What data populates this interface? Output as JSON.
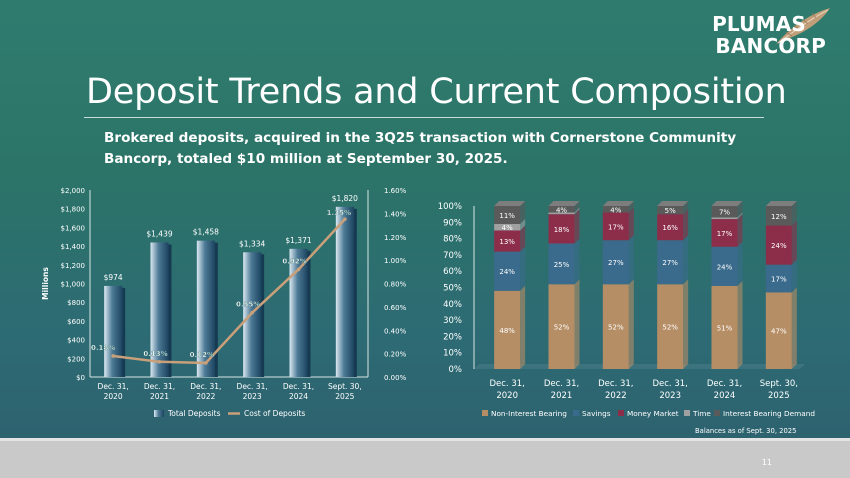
{
  "logo": {
    "line1": "PLUMAS",
    "line2": "BANCORP"
  },
  "title": "Deposit Trends and Current Composition",
  "subtitle": "Brokered deposits, acquired in the 3Q25 transaction with Cornerstone Community Bancorp, totaled $10 million at September 30, 2025.",
  "page_number": "11",
  "colors": {
    "bar": "#4d7a96",
    "line": "#c9a07a",
    "non_interest": "#b68e66",
    "savings": "#3a6b8c",
    "money_market": "#8c2e4a",
    "time": "#a0a0a0",
    "interest_demand": "#5a5a5a"
  },
  "chart_data": [
    {
      "type": "bar",
      "categories": [
        [
          "Dec. 31,",
          "2020"
        ],
        [
          "Dec. 31,",
          "2021"
        ],
        [
          "Dec. 31,",
          "2022"
        ],
        [
          "Dec. 31,",
          "2023"
        ],
        [
          "Dec. 31,",
          "2024"
        ],
        [
          "Sept. 30,",
          "2025"
        ]
      ],
      "ylabel": "Millions",
      "ylim": [
        0,
        2000
      ],
      "yticks": [
        "$0",
        "$200",
        "$400",
        "$600",
        "$800",
        "$1,000",
        "$1,200",
        "$1,400",
        "$1,600",
        "$1,800",
        "$2,000"
      ],
      "y2lim": [
        0,
        1.6
      ],
      "y2ticks": [
        "0.00%",
        "0.20%",
        "0.40%",
        "0.60%",
        "0.80%",
        "1.00%",
        "1.20%",
        "1.40%",
        "1.60%"
      ],
      "series": [
        {
          "name": "Total Deposits",
          "kind": "bar",
          "axis": "left",
          "values": [
            974,
            1439,
            1458,
            1334,
            1371,
            1820
          ],
          "labels": [
            "$974",
            "$1,439",
            "$1,458",
            "$1,334",
            "$1,371",
            "$1,820"
          ]
        },
        {
          "name": "Cost of Deposits",
          "kind": "line",
          "axis": "right",
          "values": [
            0.18,
            0.13,
            0.12,
            0.55,
            0.92,
            1.35
          ],
          "labels": [
            "0.18%",
            "0.13%",
            "0.12%",
            "0.55%",
            "0.92%",
            "1.35%"
          ]
        }
      ],
      "legend": [
        "Total Deposits",
        "Cost of Deposits"
      ],
      "legend_position": "bottom"
    },
    {
      "type": "bar",
      "stacked": true,
      "categories": [
        [
          "Dec. 31,",
          "2020"
        ],
        [
          "Dec. 31,",
          "2021"
        ],
        [
          "Dec. 31,",
          "2022"
        ],
        [
          "Dec. 31,",
          "2023"
        ],
        [
          "Dec. 31,",
          "2024"
        ],
        [
          "Sept. 30,",
          "2025"
        ]
      ],
      "ylim": [
        0,
        100
      ],
      "yticks": [
        "0%",
        "10%",
        "20%",
        "30%",
        "40%",
        "50%",
        "60%",
        "70%",
        "80%",
        "90%",
        "100%"
      ],
      "series": [
        {
          "name": "Non-Interest Bearing",
          "values": [
            48,
            52,
            52,
            52,
            51,
            47
          ]
        },
        {
          "name": "Savings",
          "values": [
            24,
            25,
            27,
            27,
            24,
            17
          ]
        },
        {
          "name": "Money Market",
          "values": [
            13,
            18,
            17,
            16,
            17,
            24
          ]
        },
        {
          "name": "Time",
          "values": [
            4,
            1,
            0,
            0,
            1,
            0
          ]
        },
        {
          "name": "Interest Bearing Demand",
          "values": [
            11,
            4,
            4,
            5,
            7,
            12
          ]
        }
      ],
      "segment_labels": [
        [
          "48%",
          "24%",
          "13%",
          "4%",
          "11%"
        ],
        [
          "52%",
          "25%",
          "18%",
          "",
          "4%"
        ],
        [
          "52%",
          "27%",
          "17%",
          "",
          "4%"
        ],
        [
          "52%",
          "27%",
          "16%",
          "",
          "5%"
        ],
        [
          "51%",
          "24%",
          "17%",
          "",
          "7%"
        ],
        [
          "47%",
          "17%",
          "24%",
          "",
          "12%"
        ]
      ],
      "legend": [
        "Non-Interest Bearing",
        "Savings",
        "Money Market",
        "Time",
        "Interest Bearing Demand"
      ],
      "legend_position": "bottom",
      "note": "Balances as of Sept. 30, 2025"
    }
  ]
}
